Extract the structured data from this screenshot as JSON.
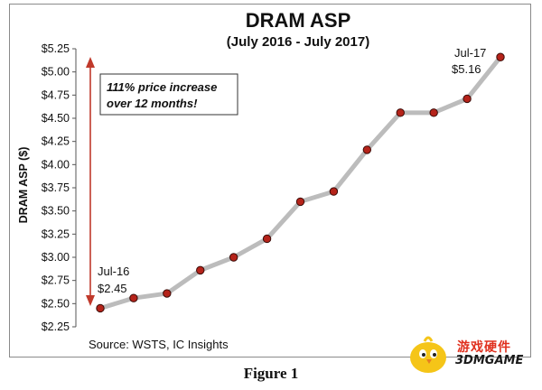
{
  "chart_data": {
    "type": "line",
    "title": "DRAM ASP",
    "subtitle": "(July 2016 - July 2017)",
    "ylabel": "DRAM ASP ($)",
    "xlabel": "",
    "ylim": [
      2.25,
      5.25
    ],
    "yticks": [
      "$2.25",
      "$2.50",
      "$2.75",
      "$3.00",
      "$3.25",
      "$3.50",
      "$3.75",
      "$4.00",
      "$4.25",
      "$4.50",
      "$4.75",
      "$5.00",
      "$5.25"
    ],
    "grid": false,
    "series": [
      {
        "values": [
          2.45,
          2.56,
          2.61,
          2.86,
          3.0,
          3.2,
          3.6,
          3.71,
          4.16,
          4.56,
          4.56,
          4.71,
          5.16
        ]
      }
    ],
    "annotations": {
      "start_label_month": "Jul-16",
      "start_label_value": "$2.45",
      "end_label_month": "Jul-17",
      "end_label_value": "$5.16",
      "note_line1": "111% price increase",
      "note_line2": "over 12 months!"
    },
    "source": "Source:  WSTS, IC Insights",
    "colors": {
      "line": "#bcbcbc",
      "marker": "#b5231a",
      "arrow": "#c0392b"
    }
  },
  "caption": "Figure 1",
  "watermark": {
    "line1": "游戏硬件",
    "line2": "3DMGAME"
  }
}
